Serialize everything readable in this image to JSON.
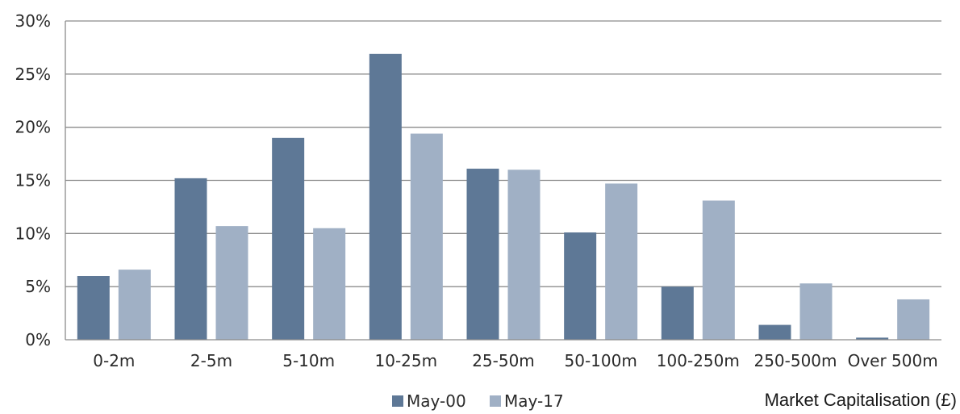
{
  "chart_data": {
    "type": "bar",
    "xlabel": "Market Capitalisation (£)",
    "ylabel": "",
    "ylim": [
      0,
      30
    ],
    "yticks": [
      "0%",
      "5%",
      "10%",
      "15%",
      "20%",
      "25%",
      "30%"
    ],
    "categories": [
      "0-2m",
      "2-5m",
      "5-10m",
      "10-25m",
      "25-50m",
      "50-100m",
      "100-250m",
      "250-500m",
      "Over 500m"
    ],
    "series": [
      {
        "name": "May-00",
        "color": "#5e7896",
        "values": [
          6.0,
          15.2,
          19.0,
          26.9,
          16.1,
          10.1,
          5.0,
          1.4,
          0.2
        ]
      },
      {
        "name": "May-17",
        "color": "#a0b0c5",
        "values": [
          6.6,
          10.7,
          10.5,
          19.4,
          16.0,
          14.7,
          13.1,
          5.3,
          3.8
        ]
      }
    ],
    "grid": true,
    "legend_position": "bottom-center"
  }
}
